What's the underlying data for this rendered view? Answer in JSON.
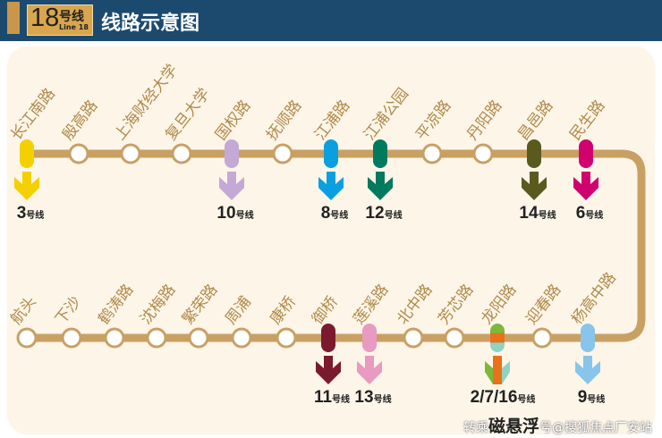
{
  "header": {
    "line_number": "18",
    "line_hao": "号线",
    "line_en": "Line 18",
    "title": "线路示意图"
  },
  "colors": {
    "track": "#c9a064",
    "header": "#1b4a6e",
    "label": "#b08a4a"
  },
  "top_stations": [
    {
      "name": "长江南路",
      "transfer": {
        "label": "3",
        "colors": [
          "#f5d000"
        ]
      }
    },
    {
      "name": "殷高路"
    },
    {
      "name": "上海财经大学"
    },
    {
      "name": "复旦大学"
    },
    {
      "name": "国权路",
      "transfer": {
        "label": "10",
        "colors": [
          "#c4a9d6"
        ]
      }
    },
    {
      "name": "抚顺路"
    },
    {
      "name": "江浦路",
      "transfer": {
        "label": "8",
        "colors": [
          "#0aa0e0"
        ]
      }
    },
    {
      "name": "江浦公园",
      "transfer": {
        "label": "12",
        "colors": [
          "#007a5e"
        ]
      }
    },
    {
      "name": "平凉路"
    },
    {
      "name": "丹阳路"
    },
    {
      "name": "昌邑路",
      "transfer": {
        "label": "14",
        "colors": [
          "#5a5a1e"
        ]
      }
    },
    {
      "name": "民生路",
      "transfer": {
        "label": "6",
        "colors": [
          "#d0006f"
        ]
      }
    }
  ],
  "bottom_stations": [
    {
      "name": "航头"
    },
    {
      "name": "下沙"
    },
    {
      "name": "鹤涛路"
    },
    {
      "name": "沈梅路"
    },
    {
      "name": "繁荣路"
    },
    {
      "name": "周浦"
    },
    {
      "name": "康桥"
    },
    {
      "name": "御桥",
      "transfer": {
        "label": "11",
        "colors": [
          "#7b1a2e"
        ]
      }
    },
    {
      "name": "莲溪路",
      "transfer": {
        "label": "13",
        "colors": [
          "#e89ac0"
        ]
      }
    },
    {
      "name": "北中路"
    },
    {
      "name": "芳芯路"
    },
    {
      "name": "龙阳路",
      "transfer": {
        "label": "2/7/16",
        "colors": [
          "#7cb93b",
          "#e9711c",
          "#8fd3c4"
        ]
      }
    },
    {
      "name": "迎春路"
    },
    {
      "name": "杨高中路",
      "transfer": {
        "label": "9",
        "colors": [
          "#87c5ea"
        ]
      }
    }
  ],
  "transfer_suffix": "号线",
  "watermark": {
    "prefix": "转乘",
    "station": "磁悬浮",
    "text": "号@搜狐焦点厂安站"
  }
}
